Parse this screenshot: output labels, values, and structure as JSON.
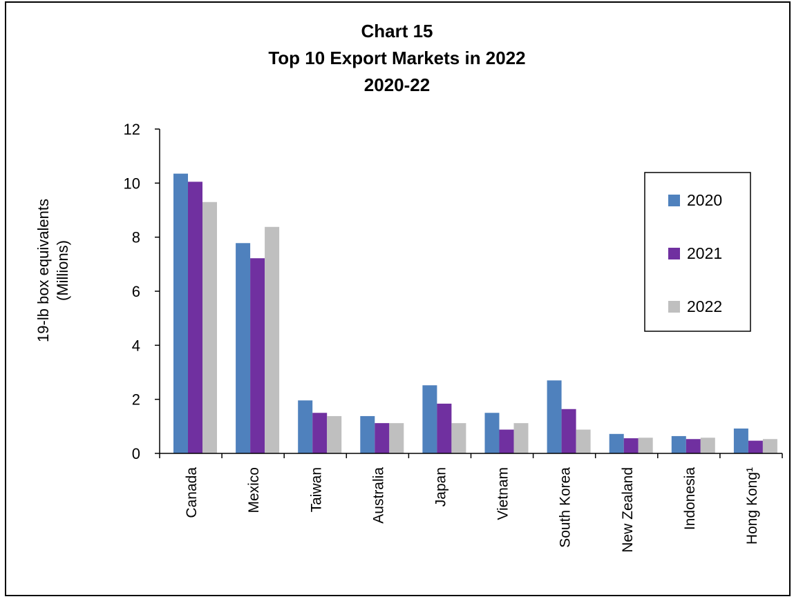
{
  "chart_data": {
    "type": "bar",
    "title": "Chart 15",
    "subtitle": "Top 10 Export Markets in 2022",
    "period": "2020-22",
    "ylabel": [
      "19-lb box equivalents",
      "(Millions)"
    ],
    "xlabel": "",
    "ylim": [
      0,
      12
    ],
    "yticks": [
      0,
      2,
      4,
      6,
      8,
      10,
      12
    ],
    "grid": false,
    "legend_position": "right",
    "categories": [
      "Canada",
      "Mexico",
      "Taiwan",
      "Australia",
      "Japan",
      "Vietnam",
      "South Korea",
      "New Zealand",
      "Indonesia",
      "Hong Kong¹"
    ],
    "series": [
      {
        "name": "2020",
        "color": "#4f81bd",
        "values": [
          10.35,
          7.78,
          1.96,
          1.38,
          2.52,
          1.5,
          2.7,
          0.72,
          0.64,
          0.92
        ]
      },
      {
        "name": "2021",
        "color": "#7030a0",
        "values": [
          10.05,
          7.22,
          1.5,
          1.12,
          1.84,
          0.88,
          1.64,
          0.56,
          0.53,
          0.47
        ]
      },
      {
        "name": "2022",
        "color": "#bfbfbf",
        "values": [
          9.3,
          8.38,
          1.38,
          1.12,
          1.12,
          1.12,
          0.88,
          0.58,
          0.58,
          0.53
        ]
      }
    ]
  }
}
